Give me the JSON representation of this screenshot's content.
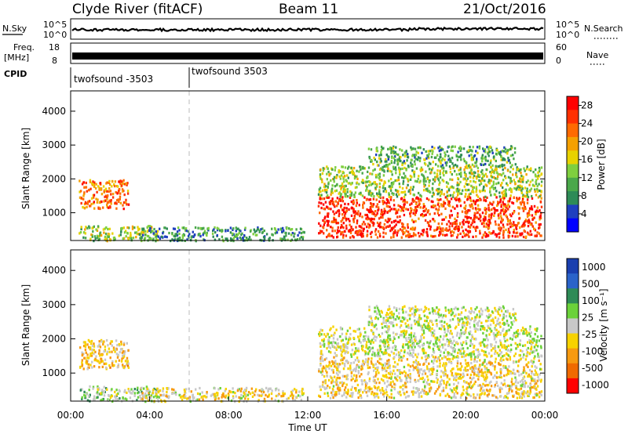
{
  "header": {
    "station": "Clyde River (fitACF)",
    "beam": "Beam 11",
    "date": "21/Oct/2016"
  },
  "strip_panels": {
    "nsky": {
      "left_label": "N.Sky",
      "left_ticks": [
        "10^5",
        "10^0"
      ],
      "right_label": "N.Search",
      "right_ticks": [
        "10^5",
        "10^0"
      ]
    },
    "freq": {
      "left_label_top": "Freq.",
      "left_label_bottom": "[MHz]",
      "left_ticks": [
        "18",
        "8"
      ],
      "right_label": "Nave",
      "right_ticks": [
        "60",
        "0"
      ]
    },
    "cpid": {
      "label": "CPID",
      "segments": [
        {
          "name": "twofsound -3503",
          "start_hour": 0
        },
        {
          "name": "twofsound 3503",
          "start_hour": 6
        }
      ]
    }
  },
  "chart_data": [
    {
      "type": "heatmap",
      "name": "power",
      "ylabel": "Slant Range [km]",
      "xlabel": "",
      "xlim": [
        0,
        24
      ],
      "ylim": [
        180,
        4600
      ],
      "yticks": [
        1000,
        2000,
        3000,
        4000
      ],
      "colorbar": {
        "label": "Power [dB]",
        "ticks": [
          "4",
          "8",
          "12",
          "16",
          "20",
          "24",
          "28"
        ],
        "range": [
          0,
          30
        ]
      },
      "echo_regions": [
        {
          "t0": 0.4,
          "t1": 2.9,
          "r0": 1150,
          "r1": 2000,
          "level": 22
        },
        {
          "t0": 0.4,
          "t1": 4.4,
          "r0": 200,
          "r1": 650,
          "level": 13
        },
        {
          "t0": 3.5,
          "t1": 11.8,
          "r0": 200,
          "r1": 600,
          "level": 8
        },
        {
          "t0": 12.5,
          "t1": 16.5,
          "r0": 300,
          "r1": 1500,
          "level": 27
        },
        {
          "t0": 16.5,
          "t1": 23.8,
          "r0": 300,
          "r1": 1500,
          "level": 25
        },
        {
          "t0": 12.5,
          "t1": 23.8,
          "r0": 1500,
          "r1": 2400,
          "level": 13
        },
        {
          "t0": 15.0,
          "t1": 22.5,
          "r0": 2400,
          "r1": 3000,
          "level": 10
        }
      ]
    },
    {
      "type": "heatmap",
      "name": "velocity",
      "ylabel": "Slant Range [km]",
      "xlabel": "Time UT",
      "xlim": [
        0,
        24
      ],
      "ylim": [
        180,
        4600
      ],
      "yticks": [
        1000,
        2000,
        3000,
        4000
      ],
      "xticks": [
        "00:00",
        "04:00",
        "08:00",
        "12:00",
        "16:00",
        "20:00",
        "00:00"
      ],
      "colorbar": {
        "label": "Velocity [m s⁻¹]",
        "ticks": [
          "1000",
          "500",
          "100",
          "25",
          "-25",
          "-100",
          "-500",
          "-1000"
        ],
        "range": [
          1000,
          -1000
        ]
      },
      "echo_regions": [
        {
          "t0": 0.4,
          "t1": 2.9,
          "r0": 1150,
          "r1": 2000,
          "level": -300
        },
        {
          "t0": 0.4,
          "t1": 4.4,
          "r0": 200,
          "r1": 650,
          "level": 150
        },
        {
          "t0": 3.5,
          "t1": 11.8,
          "r0": 200,
          "r1": 600,
          "level": -150
        },
        {
          "t0": 12.5,
          "t1": 16.5,
          "r0": 300,
          "r1": 1500,
          "level": -200
        },
        {
          "t0": 16.5,
          "t1": 23.8,
          "r0": 300,
          "r1": 1500,
          "level": -180
        },
        {
          "t0": 12.5,
          "t1": 23.8,
          "r0": 1500,
          "r1": 2400,
          "level": 0
        },
        {
          "t0": 15.0,
          "t1": 22.5,
          "r0": 2400,
          "r1": 3000,
          "level": 0
        }
      ]
    }
  ]
}
